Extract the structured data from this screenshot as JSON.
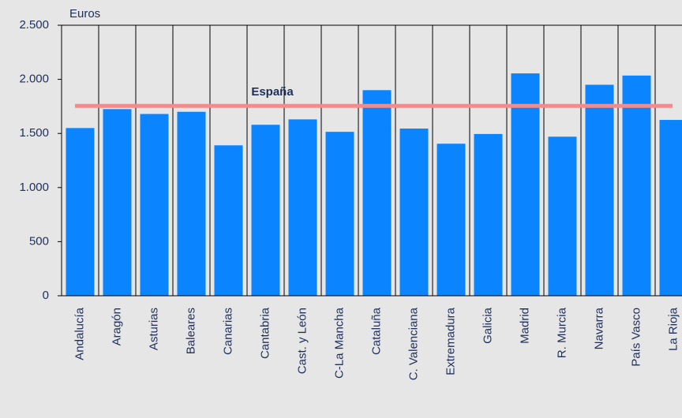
{
  "chart_data": {
    "type": "bar",
    "y_label": "Euros",
    "categories": [
      "Andalucía",
      "Aragón",
      "Asturias",
      "Baleares",
      "Canarias",
      "Cantabria",
      "Cast. y León",
      "C-La Mancha",
      "Cataluña",
      "C. Valenciana",
      "Extremadura",
      "Galicia",
      "Madrid",
      "R. Murcia",
      "Navarra",
      "País Vasco",
      "La Rioja"
    ],
    "values": [
      1550,
      1725,
      1680,
      1700,
      1390,
      1580,
      1630,
      1515,
      1900,
      1545,
      1405,
      1495,
      2055,
      1470,
      1950,
      2035,
      1625
    ],
    "color": "#0a84ff",
    "reference_line": {
      "label": "España",
      "value": 1755,
      "color": "#f28b8b"
    },
    "ylim": [
      0,
      2500
    ],
    "yticks": [
      0,
      500,
      {
        "value": 1000,
        "label": "1.000"
      },
      {
        "value": 1500,
        "label": "1.500"
      },
      {
        "value": 2000,
        "label": "2.000"
      },
      {
        "value": 2500,
        "label": "2.500"
      }
    ]
  }
}
